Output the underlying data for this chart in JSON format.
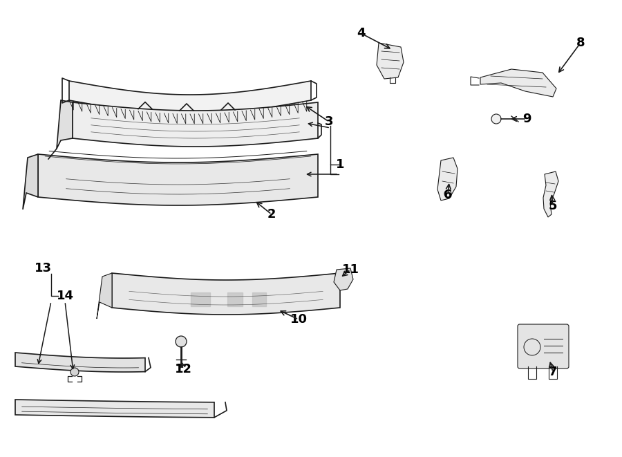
{
  "background_color": "#ffffff",
  "line_color": "#1a1a1a",
  "label_color": "#000000",
  "lw_main": 1.2,
  "lw_thin": 0.8
}
